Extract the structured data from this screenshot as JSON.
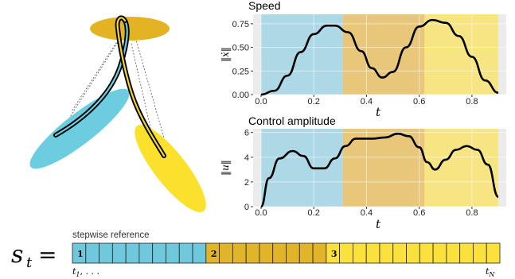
{
  "colors": {
    "phase1": "#add8e6",
    "phase2": "#e8c77a",
    "phase3": "#f7e483",
    "phase1_ellipse": "#6ccde0",
    "phase2_ellipse": "#e3b323",
    "phase3_ellipse": "#fbe12b",
    "cell1": "#6fc8dc",
    "cell2": "#e0b52a",
    "cell3": "#fbe13c",
    "grid_bg": "#ebebeb",
    "curve": "#000000"
  },
  "illustration": {
    "description_icons": [
      "yellow-top-ellipse",
      "blue-ellipse",
      "yellow-ellipse",
      "trajectory-curve"
    ]
  },
  "chart_data": [
    {
      "type": "line",
      "title": "Speed",
      "xlabel": "t",
      "ylabel": "‖ẋ‖",
      "xlim": [
        -0.03,
        0.93
      ],
      "ylim": [
        0.0,
        0.85
      ],
      "xticks": [
        "0.0",
        "0.2",
        "0.4",
        "0.6",
        "0.8"
      ],
      "xtick_values": [
        0.0,
        0.2,
        0.4,
        0.6,
        0.8
      ],
      "yticks": [
        "0.00",
        "0.25",
        "0.50",
        "0.75"
      ],
      "ytick_values": [
        0.0,
        0.25,
        0.5,
        0.75
      ],
      "phases": [
        [
          0.0,
          0.31
        ],
        [
          0.31,
          0.62
        ],
        [
          0.62,
          0.9
        ]
      ],
      "x": [
        0.0,
        0.05,
        0.1,
        0.15,
        0.2,
        0.25,
        0.28,
        0.33,
        0.38,
        0.42,
        0.46,
        0.5,
        0.55,
        0.6,
        0.65,
        0.7,
        0.75,
        0.8,
        0.85,
        0.9
      ],
      "y": [
        0.0,
        0.04,
        0.2,
        0.45,
        0.64,
        0.73,
        0.73,
        0.66,
        0.46,
        0.28,
        0.18,
        0.24,
        0.5,
        0.72,
        0.79,
        0.76,
        0.62,
        0.4,
        0.15,
        0.02
      ]
    },
    {
      "type": "line",
      "title": "Control amplitude",
      "xlabel": "t",
      "ylabel": "‖u‖",
      "xlim": [
        -0.03,
        0.93
      ],
      "ylim": [
        0,
        6.3
      ],
      "xticks": [
        "0.0",
        "0.2",
        "0.4",
        "0.6",
        "0.8"
      ],
      "xtick_values": [
        0.0,
        0.2,
        0.4,
        0.6,
        0.8
      ],
      "yticks": [
        "0",
        "2",
        "4",
        "6"
      ],
      "ytick_values": [
        0,
        2,
        4,
        6
      ],
      "phases": [
        [
          0.0,
          0.31
        ],
        [
          0.31,
          0.62
        ],
        [
          0.62,
          0.9
        ]
      ],
      "x": [
        0.0,
        0.03,
        0.07,
        0.12,
        0.16,
        0.2,
        0.24,
        0.28,
        0.32,
        0.36,
        0.42,
        0.47,
        0.52,
        0.56,
        0.6,
        0.63,
        0.66,
        0.7,
        0.74,
        0.78,
        0.82,
        0.86,
        0.9
      ],
      "y": [
        0.0,
        2.3,
        3.9,
        4.5,
        4.1,
        3.1,
        3.1,
        3.9,
        4.9,
        5.5,
        5.5,
        5.6,
        5.9,
        5.7,
        4.8,
        3.6,
        3.0,
        3.8,
        4.6,
        4.9,
        4.6,
        3.4,
        0.8
      ]
    }
  ],
  "equation": {
    "lhs": "s",
    "lhs_sub": "t",
    "equals": "="
  },
  "stepwise": {
    "label": "stepwise reference",
    "start_label": "t",
    "start_sub": "1",
    "start_suffix": ", . . .",
    "end_label": "t",
    "end_sub": "N",
    "cells": [
      {
        "phase": 1,
        "label": "1"
      },
      {
        "phase": 1,
        "label": ""
      },
      {
        "phase": 1,
        "label": ""
      },
      {
        "phase": 1,
        "label": ""
      },
      {
        "phase": 1,
        "label": ""
      },
      {
        "phase": 1,
        "label": ""
      },
      {
        "phase": 1,
        "label": ""
      },
      {
        "phase": 1,
        "label": ""
      },
      {
        "phase": 1,
        "label": ""
      },
      {
        "phase": 1,
        "label": ""
      },
      {
        "phase": 2,
        "label": "2"
      },
      {
        "phase": 2,
        "label": ""
      },
      {
        "phase": 2,
        "label": ""
      },
      {
        "phase": 2,
        "label": ""
      },
      {
        "phase": 2,
        "label": ""
      },
      {
        "phase": 2,
        "label": ""
      },
      {
        "phase": 2,
        "label": ""
      },
      {
        "phase": 2,
        "label": ""
      },
      {
        "phase": 2,
        "label": ""
      },
      {
        "phase": 3,
        "label": "3"
      },
      {
        "phase": 3,
        "label": ""
      },
      {
        "phase": 3,
        "label": ""
      },
      {
        "phase": 3,
        "label": ""
      },
      {
        "phase": 3,
        "label": ""
      },
      {
        "phase": 3,
        "label": ""
      },
      {
        "phase": 3,
        "label": ""
      },
      {
        "phase": 3,
        "label": ""
      },
      {
        "phase": 3,
        "label": ""
      },
      {
        "phase": 3,
        "label": ""
      },
      {
        "phase": 3,
        "label": ""
      },
      {
        "phase": 3,
        "label": ""
      },
      {
        "phase": 3,
        "label": ""
      }
    ]
  }
}
